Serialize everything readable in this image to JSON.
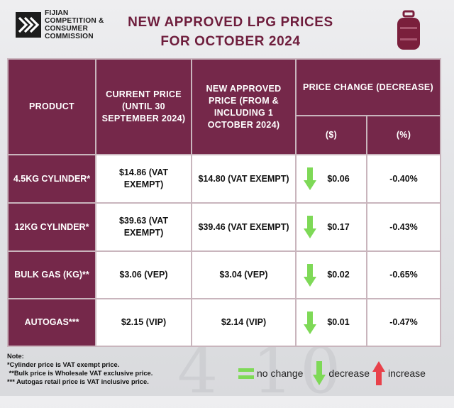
{
  "logo": {
    "lines": [
      "FIJIAN",
      "COMPETITION &",
      "CONSUMER",
      "COMMISSION"
    ]
  },
  "title": {
    "line1": "NEW APPROVED LPG PRICES",
    "line2": "FOR OCTOBER 2024"
  },
  "table": {
    "headers": {
      "product": "PRODUCT",
      "current": "CURRENT PRICE (UNTIL 30 SEPTEMBER 2024)",
      "new": "NEW APPROVED PRICE (FROM & INCLUDING 1 OCTOBER 2024)",
      "change": "PRICE CHANGE (DECREASE)",
      "change_dollar": "($)",
      "change_pct": "(%)"
    },
    "rows": [
      {
        "product": "4.5KG CYLINDER*",
        "current": "$14.86 (VAT EXEMPT)",
        "new": "$14.80 (VAT EXEMPT)",
        "change": "$0.06",
        "pct": "-0.40%",
        "direction": "decrease"
      },
      {
        "product": "12KG CYLINDER*",
        "current": "$39.63 (VAT EXEMPT)",
        "new": "$39.46 (VAT EXEMPT)",
        "change": "$0.17",
        "pct": "-0.43%",
        "direction": "decrease"
      },
      {
        "product": "BULK GAS (KG)**",
        "current": "$3.06 (VEP)",
        "new": "$3.04 (VEP)",
        "change": "$0.02",
        "pct": "-0.65%",
        "direction": "decrease"
      },
      {
        "product": "AUTOGAS***",
        "current": "$2.15 (VIP)",
        "new": "$2.14 (VIP)",
        "change": "$0.01",
        "pct": "-0.47%",
        "direction": "decrease"
      }
    ]
  },
  "notes": {
    "heading": "Note:",
    "lines": [
      "*Cylinder price is VAT exempt price.",
      " **Bulk price is Wholesale VAT exclusive price.",
      "*** Autogas retail price is VAT inclusive price."
    ]
  },
  "legend": {
    "no_change": "no change",
    "decrease": "decrease",
    "increase": "increase"
  },
  "colors": {
    "header_bg": "#75284a",
    "title": "#6e1d3c",
    "decrease_arrow": "#7ed957",
    "increase_arrow": "#e8414a",
    "grid": "#c9b5bd"
  },
  "background_text": "4 10"
}
